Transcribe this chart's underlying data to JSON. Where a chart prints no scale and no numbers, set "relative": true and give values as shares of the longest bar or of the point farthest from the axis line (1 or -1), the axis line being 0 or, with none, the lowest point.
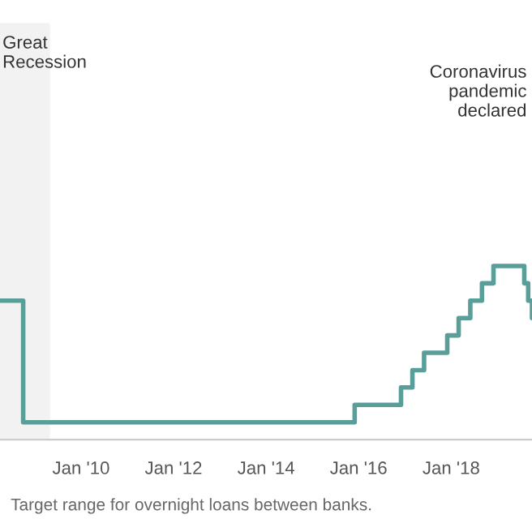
{
  "chart_data": {
    "type": "step",
    "relative": true,
    "x": [
      "2008-04",
      "2008-10",
      "2015-12",
      "2016-12",
      "2017-03",
      "2017-06",
      "2017-12",
      "2018-03",
      "2018-06",
      "2018-09",
      "2018-12",
      "2019-08",
      "2019-09",
      "2019-10"
    ],
    "series": [
      {
        "color": "#5a9e9a",
        "values": [
          0.8,
          0.1,
          0.2,
          0.3,
          0.4,
          0.5,
          0.6,
          0.7,
          0.8,
          0.9,
          1.0,
          0.9,
          0.8,
          0.7
        ]
      }
    ],
    "xlim": [
      "2008-04",
      "2019-10"
    ],
    "xticks": [
      {
        "value": "2010-01",
        "label": "Jan '10"
      },
      {
        "value": "2012-01",
        "label": "Jan '12"
      },
      {
        "value": "2014-01",
        "label": "Jan '14"
      },
      {
        "value": "2016-01",
        "label": "Jan '16"
      },
      {
        "value": "2018-01",
        "label": "Jan '18"
      }
    ],
    "bands": [
      {
        "axis": "x",
        "from": "2008-04",
        "to": "2009-05",
        "label": "Great\nRecession",
        "color": "#f2f2f2"
      }
    ],
    "annotations": [
      "Coronavirus\npandemic\ndeclared",
      "Target range for overnight loans between banks."
    ],
    "grid": false,
    "legend": false,
    "marker": "none",
    "line_style": "solid"
  }
}
